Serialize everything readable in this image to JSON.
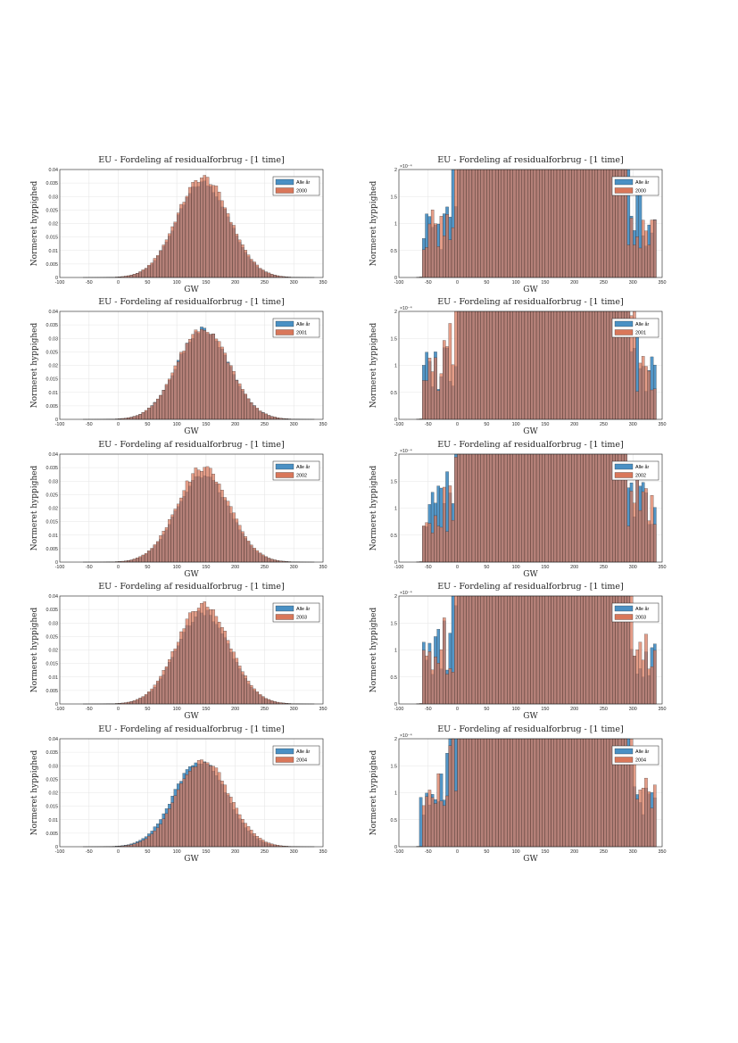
{
  "page": {
    "background": "#ffffff"
  },
  "colors": {
    "series_all": "#4a90c4",
    "series_year": "#d9775a",
    "overlap": "#8f5f55",
    "grid": "#e6e6e6",
    "axis": "#262626"
  },
  "chart_data": [
    {
      "type": "bar",
      "title": "EU - Fordeling af residualforbrug - [1 time]",
      "xlabel": "GW",
      "ylabel": "Normeret hyppighed",
      "xlim": [
        -100,
        350
      ],
      "ylim": [
        0,
        0.04
      ],
      "xticks": [
        "-100",
        "-50",
        "0",
        "50",
        "100",
        "150",
        "200",
        "250",
        "300",
        "350"
      ],
      "yticks": [
        "0",
        "0.005",
        "0.01",
        "0.015",
        "0.02",
        "0.025",
        "0.03",
        "0.035",
        "0.04"
      ],
      "grid": true,
      "legend": "top-right",
      "series": [
        {
          "name": "Alle år",
          "mean": 145,
          "sd": 45,
          "peak": 0.035
        },
        {
          "name": "2000",
          "mean": 145,
          "sd": 45,
          "peak": 0.037
        }
      ],
      "bin_edges": {
        "start": -80,
        "width": 5,
        "count": 85
      }
    },
    {
      "type": "bar",
      "title": "EU - Fordeling af residualforbrug - [1 time]",
      "xlabel": "GW",
      "ylabel": "Normeret hyppighed",
      "xlim": [
        -100,
        350
      ],
      "ylim": [
        0,
        0.0002
      ],
      "y_exponent": "×10⁻⁴",
      "xticks": [
        "-100",
        "-50",
        "0",
        "50",
        "100",
        "150",
        "200",
        "250",
        "300",
        "350"
      ],
      "yticks": [
        "0",
        "0.5",
        "1",
        "1.5",
        "2"
      ],
      "grid": true,
      "legend": "top-right",
      "series": [
        {
          "name": "Alle år",
          "mean": 145,
          "sd": 45,
          "peak": 0.035
        },
        {
          "name": "2000",
          "mean": 145,
          "sd": 45,
          "peak": 0.037
        }
      ],
      "bin_edges": {
        "start": -80,
        "width": 5,
        "count": 85
      }
    },
    {
      "type": "bar",
      "title": "EU - Fordeling af residualforbrug - [1 time]",
      "xlabel": "GW",
      "ylabel": "Normeret hyppighed",
      "xlim": [
        -100,
        350
      ],
      "ylim": [
        0,
        0.04
      ],
      "xticks": [
        "-100",
        "-50",
        "0",
        "50",
        "100",
        "150",
        "200",
        "250",
        "300",
        "350"
      ],
      "yticks": [
        "0",
        "0.005",
        "0.01",
        "0.015",
        "0.02",
        "0.025",
        "0.03",
        "0.035",
        "0.04"
      ],
      "grid": true,
      "legend": "top-right",
      "series": [
        {
          "name": "Alle år",
          "mean": 145,
          "sd": 45,
          "peak": 0.033
        },
        {
          "name": "2001",
          "mean": 145,
          "sd": 45,
          "peak": 0.034
        }
      ],
      "bin_edges": {
        "start": -80,
        "width": 5,
        "count": 85
      }
    },
    {
      "type": "bar",
      "title": "EU - Fordeling af residualforbrug - [1 time]",
      "xlabel": "GW",
      "ylabel": "Normeret hyppighed",
      "xlim": [
        -100,
        350
      ],
      "ylim": [
        0,
        0.0002
      ],
      "y_exponent": "×10⁻⁴",
      "xticks": [
        "-100",
        "-50",
        "0",
        "50",
        "100",
        "150",
        "200",
        "250",
        "300",
        "350"
      ],
      "yticks": [
        "0",
        "0.5",
        "1",
        "1.5",
        "2"
      ],
      "grid": true,
      "legend": "top-right",
      "series": [
        {
          "name": "Alle år",
          "mean": 145,
          "sd": 45,
          "peak": 0.033
        },
        {
          "name": "2001",
          "mean": 145,
          "sd": 45,
          "peak": 0.034
        }
      ],
      "bin_edges": {
        "start": -80,
        "width": 5,
        "count": 85
      }
    },
    {
      "type": "bar",
      "title": "EU - Fordeling af residualforbrug - [1 time]",
      "xlabel": "GW",
      "ylabel": "Normeret hyppighed",
      "xlim": [
        -100,
        350
      ],
      "ylim": [
        0,
        0.04
      ],
      "xticks": [
        "-100",
        "-50",
        "0",
        "50",
        "100",
        "150",
        "200",
        "250",
        "300",
        "350"
      ],
      "yticks": [
        "0",
        "0.005",
        "0.01",
        "0.015",
        "0.02",
        "0.025",
        "0.03",
        "0.035",
        "0.04"
      ],
      "grid": true,
      "legend": "top-right",
      "series": [
        {
          "name": "Alle år",
          "mean": 145,
          "sd": 45,
          "peak": 0.032
        },
        {
          "name": "2002",
          "mean": 145,
          "sd": 45,
          "peak": 0.035
        }
      ],
      "bin_edges": {
        "start": -80,
        "width": 5,
        "count": 85
      }
    },
    {
      "type": "bar",
      "title": "EU - Fordeling af residualforbrug - [1 time]",
      "xlabel": "GW",
      "ylabel": "Normeret hyppighed",
      "xlim": [
        -100,
        350
      ],
      "ylim": [
        0,
        0.0002
      ],
      "y_exponent": "×10⁻⁴",
      "xticks": [
        "-100",
        "-50",
        "0",
        "50",
        "100",
        "150",
        "200",
        "250",
        "300",
        "350"
      ],
      "yticks": [
        "0",
        "0.5",
        "1",
        "1.5",
        "2"
      ],
      "grid": true,
      "legend": "top-right",
      "series": [
        {
          "name": "Alle år",
          "mean": 145,
          "sd": 45,
          "peak": 0.032
        },
        {
          "name": "2002",
          "mean": 145,
          "sd": 45,
          "peak": 0.035
        }
      ],
      "bin_edges": {
        "start": -80,
        "width": 5,
        "count": 85
      }
    },
    {
      "type": "bar",
      "title": "EU - Fordeling af residualforbrug - [1 time]",
      "xlabel": "GW",
      "ylabel": "Normeret hyppighed",
      "xlim": [
        -100,
        350
      ],
      "ylim": [
        0,
        0.04
      ],
      "xticks": [
        "-100",
        "-50",
        "0",
        "50",
        "100",
        "150",
        "200",
        "250",
        "300",
        "350"
      ],
      "yticks": [
        "0",
        "0.005",
        "0.01",
        "0.015",
        "0.02",
        "0.025",
        "0.03",
        "0.035",
        "0.04"
      ],
      "grid": true,
      "legend": "top-right",
      "series": [
        {
          "name": "Alle år",
          "mean": 145,
          "sd": 45,
          "peak": 0.034
        },
        {
          "name": "2003",
          "mean": 145,
          "sd": 45,
          "peak": 0.037
        }
      ],
      "bin_edges": {
        "start": -80,
        "width": 5,
        "count": 85
      }
    },
    {
      "type": "bar",
      "title": "EU - Fordeling af residualforbrug - [1 time]",
      "xlabel": "GW",
      "ylabel": "Normeret hyppighed",
      "xlim": [
        -100,
        350
      ],
      "ylim": [
        0,
        0.0002
      ],
      "y_exponent": "×10⁻⁴",
      "xticks": [
        "-100",
        "-50",
        "0",
        "50",
        "100",
        "150",
        "200",
        "250",
        "300",
        "350"
      ],
      "yticks": [
        "0",
        "0.5",
        "1",
        "1.5",
        "2"
      ],
      "grid": true,
      "legend": "top-right",
      "series": [
        {
          "name": "Alle år",
          "mean": 145,
          "sd": 45,
          "peak": 0.034
        },
        {
          "name": "2003",
          "mean": 145,
          "sd": 45,
          "peak": 0.037
        }
      ],
      "bin_edges": {
        "start": -80,
        "width": 5,
        "count": 85
      }
    },
    {
      "type": "bar",
      "title": "EU - Fordeling af residualforbrug - [1 time]",
      "xlabel": "GW",
      "ylabel": "Normeret hyppighed",
      "xlim": [
        -100,
        350
      ],
      "ylim": [
        0,
        0.04
      ],
      "xticks": [
        "-100",
        "-50",
        "0",
        "50",
        "100",
        "150",
        "200",
        "250",
        "300",
        "350"
      ],
      "yticks": [
        "0",
        "0.005",
        "0.01",
        "0.015",
        "0.02",
        "0.025",
        "0.03",
        "0.035",
        "0.04"
      ],
      "grid": true,
      "legend": "top-right",
      "series": [
        {
          "name": "Alle år",
          "mean": 140,
          "sd": 45,
          "peak": 0.032
        },
        {
          "name": "2004",
          "mean": 145,
          "sd": 45,
          "peak": 0.032
        }
      ],
      "bin_edges": {
        "start": -80,
        "width": 5,
        "count": 85
      }
    },
    {
      "type": "bar",
      "title": "EU - Fordeling af residualforbrug - [1 time]",
      "xlabel": "GW",
      "ylabel": "Normeret hyppighed",
      "xlim": [
        -100,
        350
      ],
      "ylim": [
        0,
        0.0002
      ],
      "y_exponent": "×10⁻⁴",
      "xticks": [
        "-100",
        "-50",
        "0",
        "50",
        "100",
        "150",
        "200",
        "250",
        "300",
        "350"
      ],
      "yticks": [
        "0",
        "0.5",
        "1",
        "1.5",
        "2"
      ],
      "grid": true,
      "legend": "top-right",
      "series": [
        {
          "name": "Alle år",
          "mean": 140,
          "sd": 45,
          "peak": 0.032
        },
        {
          "name": "2004",
          "mean": 145,
          "sd": 45,
          "peak": 0.032
        }
      ],
      "bin_edges": {
        "start": -80,
        "width": 5,
        "count": 85
      }
    }
  ]
}
